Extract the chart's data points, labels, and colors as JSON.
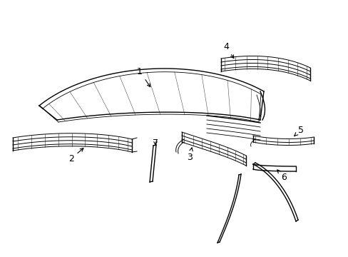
{
  "bg_color": "#ffffff",
  "line_color": "#000000",
  "lw": 1.0,
  "lw_thin": 0.5,
  "figsize": [
    4.89,
    3.6
  ],
  "dpi": 100,
  "xlim": [
    0,
    489
  ],
  "ylim": [
    0,
    360
  ]
}
